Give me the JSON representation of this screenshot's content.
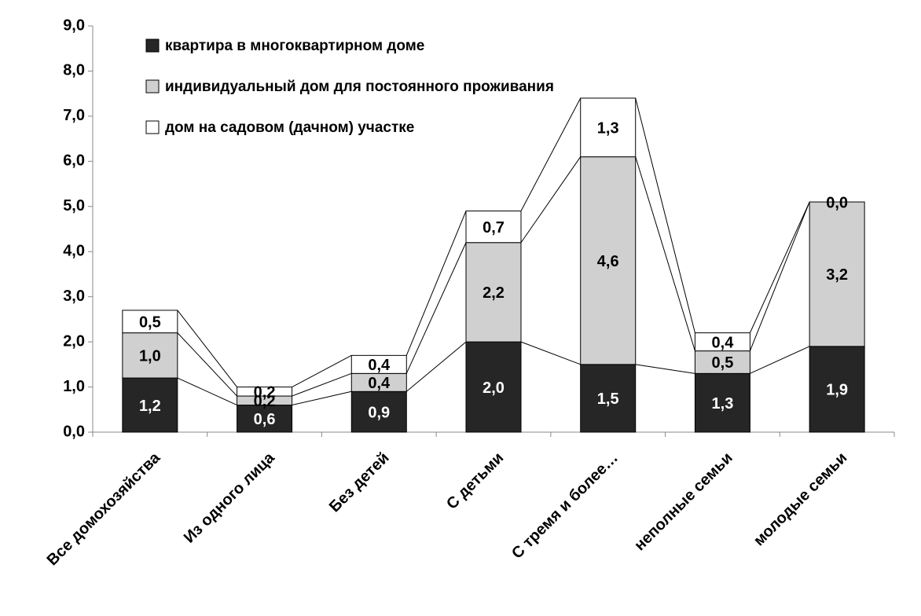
{
  "chart_data": {
    "type": "stacked_bar",
    "categories": [
      "Все домохозяйства",
      "Из одного лица",
      "Без детей",
      "С  детьми",
      "С тремя и более…",
      "неполные  семьи",
      "молодые  семьи"
    ],
    "series": [
      {
        "name": "квартира в многоквартирном доме",
        "color": "#262626",
        "values": [
          1.2,
          0.6,
          0.9,
          2.0,
          1.5,
          1.3,
          1.9
        ],
        "value_labels": [
          "1,2",
          "0,6",
          "0,9",
          "2,0",
          "1,5",
          "1,3",
          "1,9"
        ]
      },
      {
        "name": "индивидуальный дом для постоянного проживания",
        "color": "#d0d0d0",
        "values": [
          1.0,
          0.2,
          0.4,
          2.2,
          4.6,
          0.5,
          3.2
        ],
        "value_labels": [
          "1,0",
          "0,2",
          "0,4",
          "2,2",
          "4,6",
          "0,5",
          "3,2"
        ]
      },
      {
        "name": "дом на садовом (дачном) участке",
        "color": "#ffffff",
        "values": [
          0.5,
          0.2,
          0.4,
          0.7,
          1.3,
          0.4,
          0.0
        ],
        "value_labels": [
          "0,5",
          "0,2",
          "0,4",
          "0,7",
          "1,3",
          "0,4",
          "0,0"
        ]
      }
    ],
    "ylim": [
      0,
      9
    ],
    "yticks": [
      {
        "value": 0,
        "label": "0,0"
      },
      {
        "value": 1,
        "label": "1,0"
      },
      {
        "value": 2,
        "label": "2,0"
      },
      {
        "value": 3,
        "label": "3,0"
      },
      {
        "value": 4,
        "label": "4,0"
      },
      {
        "value": 5,
        "label": "5,0"
      },
      {
        "value": 6,
        "label": "6,0"
      },
      {
        "value": 7,
        "label": "7,0"
      },
      {
        "value": 8,
        "label": "8,0"
      },
      {
        "value": 9,
        "label": "9,0"
      }
    ],
    "legend": "top-left"
  }
}
